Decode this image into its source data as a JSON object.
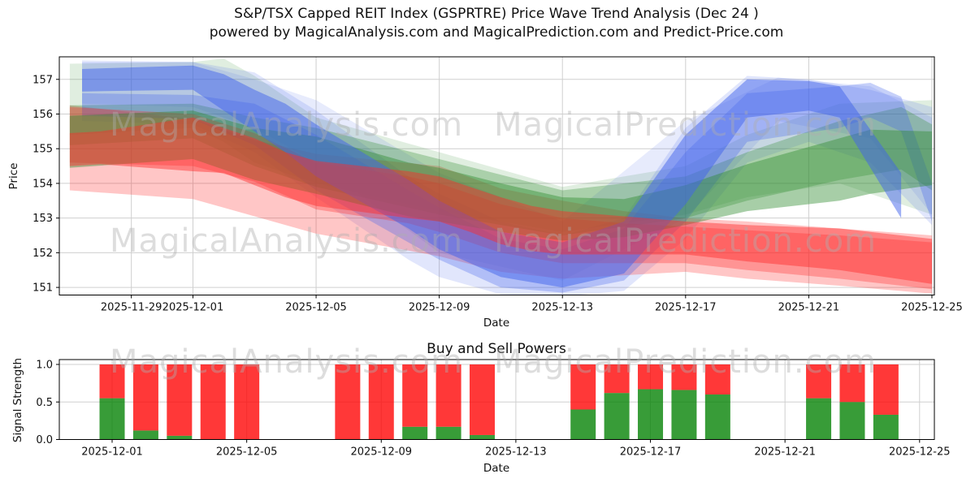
{
  "figure": {
    "title": "S&P/TSX Capped REIT Index (GSPRTRE) Price Wave Trend Analysis (Dec 24 )",
    "subtitle": "powered by MagicalAnalysis.com and MagicalPrediction.com and Predict-Price.com"
  },
  "watermarks": [
    "MagicalAnalysis.com",
    "MagicalPrediction.com"
  ],
  "chart_data": [
    {
      "type": "area",
      "name": "price-wave-trend",
      "xlabel": "Date",
      "ylabel": "Price",
      "grid": true,
      "legend": "none",
      "ylim": [
        150.78,
        157.65
      ],
      "xlim_days": [
        -4.34,
        24.08
      ],
      "y_ticks": [
        151,
        152,
        153,
        154,
        155,
        156,
        157
      ],
      "x_ticks": [
        {
          "label": "2025-11-29",
          "day": -2
        },
        {
          "label": "2025-12-01",
          "day": 0
        },
        {
          "label": "2025-12-05",
          "day": 4
        },
        {
          "label": "2025-12-09",
          "day": 8
        },
        {
          "label": "2025-12-13",
          "day": 12
        },
        {
          "label": "2025-12-17",
          "day": 16
        },
        {
          "label": "2025-12-21",
          "day": 20
        },
        {
          "label": "2025-12-25",
          "day": 24
        }
      ],
      "bands": [
        {
          "name": "green-pale",
          "color": "#2e8b2e",
          "opacity": 0.15,
          "points": [
            [
              -4,
              155.4,
              157.45
            ],
            [
              0,
              155.6,
              157.5
            ],
            [
              1,
              155.2,
              157.6
            ],
            [
              2,
              154.6,
              157.1
            ],
            [
              4,
              154.0,
              155.9
            ],
            [
              8,
              153.2,
              154.9
            ],
            [
              12,
              152.6,
              153.9
            ],
            [
              16,
              153.1,
              154.5
            ],
            [
              18,
              153.6,
              155.4
            ],
            [
              21,
              154.0,
              156.3
            ],
            [
              24,
              153.1,
              156.4
            ]
          ]
        },
        {
          "name": "blue-pale",
          "color": "#4263eb",
          "opacity": 0.16,
          "points": [
            [
              -3.6,
              155.8,
              157.5
            ],
            [
              0,
              155.7,
              157.5
            ],
            [
              2,
              154.9,
              157.2
            ],
            [
              4,
              153.6,
              156.1
            ],
            [
              7,
              151.8,
              154.2
            ],
            [
              8,
              151.3,
              153.7
            ],
            [
              10,
              150.8,
              152.9
            ],
            [
              12,
              150.75,
              152.5
            ],
            [
              14,
              150.9,
              153.0
            ],
            [
              16,
              152.4,
              155.6
            ],
            [
              18,
              154.6,
              157.1
            ],
            [
              20,
              155.2,
              157.0
            ],
            [
              22,
              154.6,
              156.7
            ],
            [
              24,
              152.8,
              156.2
            ]
          ]
        },
        {
          "name": "blue-pale-2",
          "color": "#4263eb",
          "opacity": 0.13,
          "points": [
            [
              -3.6,
              156.3,
              157.55
            ],
            [
              0,
              156.2,
              157.5
            ],
            [
              2,
              155.6,
              157.0
            ],
            [
              4,
              154.6,
              156.4
            ],
            [
              8,
              152.0,
              154.3
            ],
            [
              12,
              151.2,
              152.9
            ],
            [
              16,
              153.0,
              155.8
            ],
            [
              19,
              155.8,
              157.05
            ],
            [
              22,
              155.3,
              156.8
            ],
            [
              24,
              153.1,
              155.9
            ]
          ]
        },
        {
          "name": "red-pale",
          "color": "#ff2b2b",
          "opacity": 0.27,
          "points": [
            [
              -4,
              153.8,
              156.25
            ],
            [
              0,
              153.55,
              155.85
            ],
            [
              2,
              153.05,
              155.25
            ],
            [
              4,
              152.55,
              154.85
            ],
            [
              8,
              151.9,
              154.5
            ],
            [
              10,
              151.45,
              153.85
            ],
            [
              12,
              151.25,
              153.5
            ],
            [
              14,
              151.35,
              153.2
            ],
            [
              16,
              151.45,
              153.0
            ],
            [
              18,
              151.25,
              152.9
            ],
            [
              21,
              151.05,
              152.7
            ],
            [
              24,
              150.82,
              152.5
            ]
          ]
        },
        {
          "name": "green-mid",
          "color": "#2e8b2e",
          "opacity": 0.3,
          "points": [
            [
              -4,
              155.1,
              156.25
            ],
            [
              0,
              155.3,
              156.3
            ],
            [
              2,
              154.5,
              155.9
            ],
            [
              4,
              153.9,
              155.6
            ],
            [
              8,
              153.1,
              154.7
            ],
            [
              12,
              152.5,
              153.8
            ],
            [
              16,
              153.0,
              154.2
            ],
            [
              18,
              153.5,
              154.9
            ],
            [
              21,
              154.1,
              155.8
            ],
            [
              23,
              154.4,
              156.2
            ],
            [
              24,
              153.8,
              155.7
            ]
          ]
        },
        {
          "name": "blue-mid",
          "color": "#4263eb",
          "opacity": 0.3,
          "points": [
            [
              -3.6,
              155.95,
              156.6
            ],
            [
              0,
              155.85,
              156.55
            ],
            [
              2,
              155.1,
              156.3
            ],
            [
              4,
              153.8,
              155.4
            ],
            [
              7,
              152.3,
              153.8
            ],
            [
              8,
              151.8,
              153.3
            ],
            [
              10,
              151.0,
              152.4
            ],
            [
              12,
              150.85,
              152.1
            ],
            [
              14,
              151.2,
              152.7
            ],
            [
              16,
              152.9,
              154.9
            ],
            [
              18,
              155.2,
              156.6
            ],
            [
              21,
              155.6,
              156.8
            ],
            [
              22,
              155.9,
              156.9
            ],
            [
              23,
              155.5,
              156.5
            ],
            [
              24,
              152.9,
              154.0
            ]
          ]
        },
        {
          "name": "red-mid",
          "color": "#ff2b2b",
          "opacity": 0.32,
          "points": [
            [
              -4,
              154.6,
              156.2
            ],
            [
              0,
              154.5,
              156.0
            ],
            [
              2,
              154.05,
              155.45
            ],
            [
              4,
              153.25,
              154.6
            ],
            [
              7,
              152.85,
              154.2
            ],
            [
              8,
              152.6,
              154.0
            ],
            [
              10,
              152.0,
              153.4
            ],
            [
              12,
              151.7,
              153.0
            ],
            [
              14,
              151.7,
              152.85
            ],
            [
              16,
              151.7,
              152.75
            ],
            [
              18,
              151.5,
              152.65
            ],
            [
              21,
              151.25,
              152.5
            ],
            [
              24,
              150.95,
              152.3
            ]
          ]
        },
        {
          "name": "green-main",
          "color": "#2e8b2e",
          "opacity": 0.42,
          "points": [
            [
              -4,
              154.45,
              155.95
            ],
            [
              0,
              154.7,
              156.1
            ],
            [
              2,
              154.1,
              155.6
            ],
            [
              4,
              153.7,
              155.35
            ],
            [
              7,
              153.05,
              154.6
            ],
            [
              8,
              152.9,
              154.45
            ],
            [
              10,
              152.6,
              154.0
            ],
            [
              12,
              152.35,
              153.6
            ],
            [
              14,
              152.45,
              153.55
            ],
            [
              16,
              152.8,
              153.95
            ],
            [
              18,
              153.2,
              154.55
            ],
            [
              21,
              153.5,
              155.3
            ],
            [
              22,
              153.7,
              155.55
            ],
            [
              24,
              153.95,
              155.5
            ]
          ]
        },
        {
          "name": "blue-dark",
          "color": "#4263eb",
          "opacity": 0.5,
          "points": [
            [
              -3.6,
              156.65,
              157.3
            ],
            [
              0,
              156.7,
              157.4
            ],
            [
              1,
              156.1,
              157.15
            ],
            [
              2,
              155.5,
              156.7
            ],
            [
              3,
              154.9,
              156.3
            ],
            [
              4,
              154.2,
              155.7
            ],
            [
              7,
              152.7,
              154.1
            ],
            [
              8,
              152.1,
              153.5
            ],
            [
              10,
              151.3,
              152.6
            ],
            [
              12,
              151.0,
              152.3
            ],
            [
              14,
              151.4,
              152.9
            ],
            [
              16,
              153.4,
              155.4
            ],
            [
              18,
              155.9,
              157.0
            ],
            [
              20,
              156.1,
              156.95
            ],
            [
              21,
              155.9,
              156.8
            ],
            [
              23,
              153.0,
              154.3
            ]
          ]
        },
        {
          "name": "red-main",
          "color": "#ff2b2b",
          "opacity": 0.45,
          "points": [
            [
              -4,
              154.5,
              155.45
            ],
            [
              -3,
              154.55,
              155.5
            ],
            [
              0,
              154.35,
              155.9
            ],
            [
              1,
              154.3,
              155.6
            ],
            [
              2,
              153.95,
              155.3
            ],
            [
              3,
              153.6,
              154.9
            ],
            [
              4,
              153.35,
              154.65
            ],
            [
              7,
              153.0,
              154.35
            ],
            [
              8,
              152.9,
              154.2
            ],
            [
              9,
              152.6,
              153.9
            ],
            [
              10,
              152.25,
              153.6
            ],
            [
              11,
              152.05,
              153.35
            ],
            [
              12,
              151.95,
              153.2
            ],
            [
              14,
              151.95,
              153.05
            ],
            [
              16,
              151.95,
              152.9
            ],
            [
              18,
              151.75,
              152.8
            ],
            [
              21,
              151.5,
              152.7
            ],
            [
              24,
              151.1,
              152.4
            ]
          ]
        }
      ]
    },
    {
      "type": "bar",
      "name": "buy-sell-powers",
      "title": "Buy and Sell Powers",
      "xlabel": "Date",
      "ylabel": "Signal Strength",
      "grid": true,
      "stacked": true,
      "ylim": [
        0,
        1.065
      ],
      "xlim_days": [
        -1.57,
        24.44
      ],
      "y_ticks": [
        {
          "label": "0.0",
          "v": 0.0
        },
        {
          "label": "0.5",
          "v": 0.5
        },
        {
          "label": "1.0",
          "v": 1.0
        }
      ],
      "x_ticks": [
        {
          "label": "2025-12-01",
          "day": 0
        },
        {
          "label": "2025-12-05",
          "day": 4
        },
        {
          "label": "2025-12-09",
          "day": 8
        },
        {
          "label": "2025-12-13",
          "day": 12
        },
        {
          "label": "2025-12-17",
          "day": 16
        },
        {
          "label": "2025-12-21",
          "day": 20
        },
        {
          "label": "2025-12-25",
          "day": 24
        }
      ],
      "categories": [
        "2025-12-01",
        "2025-12-02",
        "2025-12-03",
        "2025-12-04",
        "2025-12-05",
        "2025-12-08",
        "2025-12-09",
        "2025-12-10",
        "2025-12-11",
        "2025-12-12",
        "2025-12-15",
        "2025-12-16",
        "2025-12-17",
        "2025-12-18",
        "2025-12-19",
        "2025-12-22",
        "2025-12-23",
        "2025-12-24"
      ],
      "bar_days": [
        0,
        1,
        2,
        3,
        4,
        7,
        8,
        9,
        10,
        11,
        14,
        15,
        16,
        17,
        18,
        21,
        22,
        23
      ],
      "series": [
        {
          "name": "buy_power",
          "color": "#008000",
          "opacity": 0.78,
          "values": [
            0.55,
            0.12,
            0.05,
            0.0,
            0.0,
            0.0,
            0.0,
            0.17,
            0.17,
            0.06,
            0.4,
            0.62,
            0.67,
            0.66,
            0.6,
            0.55,
            0.5,
            0.33
          ]
        },
        {
          "name": "sell_power",
          "color": "#ff0000",
          "opacity": 0.78,
          "values": [
            0.45,
            0.88,
            0.95,
            1.0,
            1.0,
            1.0,
            1.0,
            0.83,
            0.83,
            0.94,
            0.6,
            0.38,
            0.33,
            0.34,
            0.4,
            0.45,
            0.5,
            0.67
          ]
        }
      ]
    }
  ]
}
